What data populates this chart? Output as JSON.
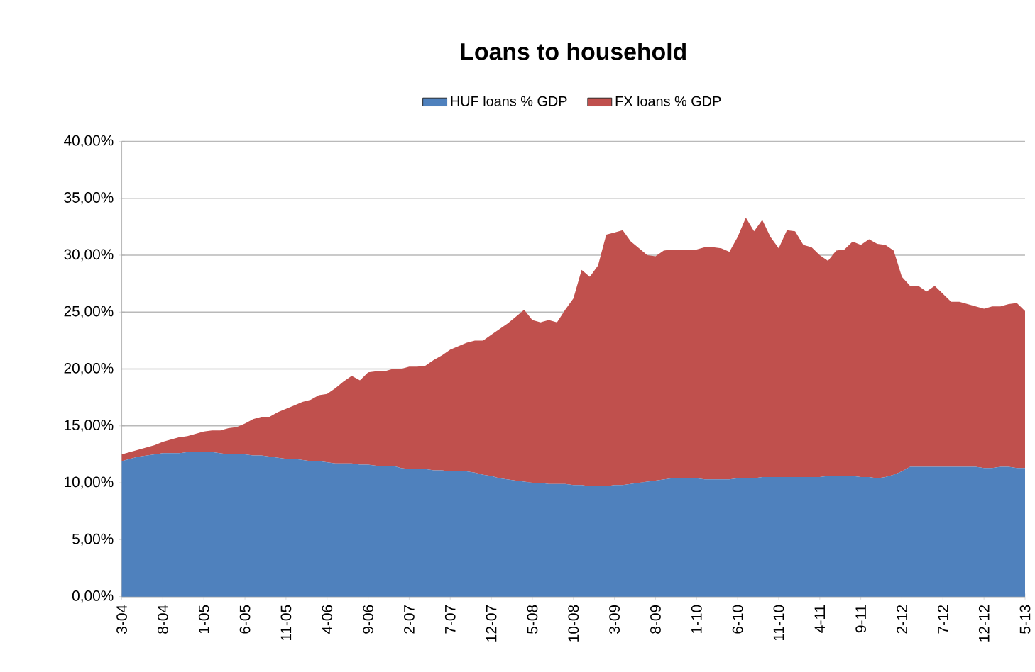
{
  "chart_data": {
    "type": "area",
    "title": "Loans to household",
    "stacked": true,
    "legend": "top",
    "grid": "y",
    "categories": [
      "3-04",
      null,
      null,
      null,
      null,
      "8-04",
      null,
      null,
      null,
      null,
      "1-05",
      null,
      null,
      null,
      null,
      "6-05",
      null,
      null,
      null,
      null,
      "11-05",
      null,
      null,
      null,
      null,
      "4-06",
      null,
      null,
      null,
      null,
      "9-06",
      null,
      null,
      null,
      null,
      "2-07",
      null,
      null,
      null,
      null,
      "7-07",
      null,
      null,
      null,
      null,
      "12-07",
      null,
      null,
      null,
      null,
      "5-08",
      null,
      null,
      null,
      null,
      "10-08",
      null,
      null,
      null,
      null,
      "3-09",
      null,
      null,
      null,
      null,
      "8-09",
      null,
      null,
      null,
      null,
      "1-10",
      null,
      null,
      null,
      null,
      "6-10",
      null,
      null,
      null,
      null,
      "11-10",
      null,
      null,
      null,
      null,
      "4-11",
      null,
      null,
      null,
      null,
      "9-11",
      null,
      null,
      null,
      null,
      "2-12",
      null,
      null,
      null,
      null,
      "7-12",
      null,
      null,
      null,
      null,
      "12-12",
      null,
      null,
      null,
      null,
      "5-13"
    ],
    "ylim": [
      0,
      40
    ],
    "yticks": [
      {
        "value": 0,
        "label": "0,00%"
      },
      {
        "value": 5,
        "label": "5,00%"
      },
      {
        "value": 10,
        "label": "10,00%"
      },
      {
        "value": 15,
        "label": "15,00%"
      },
      {
        "value": 20,
        "label": "20,00%"
      },
      {
        "value": 25,
        "label": "25,00%"
      },
      {
        "value": 30,
        "label": "30,00%"
      },
      {
        "value": 35,
        "label": "35,00%"
      },
      {
        "value": 40,
        "label": "40,00%"
      }
    ],
    "series": [
      {
        "name": "HUF loans % GDP",
        "color": "#4f81bd",
        "values": [
          11.9,
          12.1,
          12.3,
          12.4,
          12.5,
          12.6,
          12.6,
          12.6,
          12.7,
          12.7,
          12.7,
          12.7,
          12.6,
          12.5,
          12.5,
          12.5,
          12.4,
          12.4,
          12.3,
          12.2,
          12.1,
          12.1,
          12.0,
          11.9,
          11.9,
          11.8,
          11.7,
          11.7,
          11.7,
          11.6,
          11.6,
          11.5,
          11.5,
          11.5,
          11.3,
          11.2,
          11.2,
          11.2,
          11.1,
          11.1,
          11.0,
          11.0,
          11.0,
          10.9,
          10.7,
          10.6,
          10.4,
          10.3,
          10.2,
          10.1,
          10.0,
          10.0,
          9.9,
          9.9,
          9.9,
          9.8,
          9.8,
          9.7,
          9.7,
          9.7,
          9.8,
          9.8,
          9.9,
          10.0,
          10.1,
          10.2,
          10.3,
          10.4,
          10.4,
          10.4,
          10.4,
          10.3,
          10.3,
          10.3,
          10.3,
          10.4,
          10.4,
          10.4,
          10.5,
          10.5,
          10.5,
          10.5,
          10.5,
          10.5,
          10.5,
          10.5,
          10.6,
          10.6,
          10.6,
          10.6,
          10.5,
          10.5,
          10.4,
          10.5,
          10.7,
          11.0,
          11.4,
          11.4,
          11.4,
          11.4,
          11.4,
          11.4,
          11.4,
          11.4,
          11.4,
          11.3,
          11.3,
          11.4,
          11.4,
          11.3,
          11.3
        ]
      },
      {
        "name": "FX loans % GDP",
        "color": "#c0504d",
        "values": [
          0.6,
          0.6,
          0.6,
          0.7,
          0.8,
          1.0,
          1.2,
          1.4,
          1.4,
          1.6,
          1.8,
          1.9,
          2.0,
          2.3,
          2.4,
          2.7,
          3.2,
          3.4,
          3.5,
          4.0,
          4.4,
          4.7,
          5.1,
          5.4,
          5.8,
          6.0,
          6.6,
          7.2,
          7.7,
          7.4,
          8.1,
          8.3,
          8.3,
          8.5,
          8.7,
          9.0,
          9.0,
          9.1,
          9.7,
          10.1,
          10.7,
          11.0,
          11.3,
          11.6,
          11.8,
          12.4,
          13.1,
          13.7,
          14.4,
          15.1,
          14.3,
          14.1,
          14.4,
          14.2,
          15.3,
          16.4,
          18.9,
          18.4,
          19.4,
          22.1,
          22.2,
          22.4,
          21.3,
          20.6,
          19.9,
          19.7,
          20.1,
          20.1,
          20.1,
          20.1,
          20.1,
          20.4,
          20.4,
          20.3,
          20.0,
          21.2,
          22.9,
          21.7,
          22.6,
          21.1,
          20.1,
          21.7,
          21.6,
          20.4,
          20.2,
          19.5,
          18.9,
          19.8,
          19.9,
          20.6,
          20.4,
          20.9,
          20.6,
          20.4,
          19.7,
          17.1,
          15.9,
          15.9,
          15.4,
          15.9,
          15.2,
          14.5,
          14.5,
          14.3,
          14.1,
          14.0,
          14.2,
          14.1,
          14.3,
          14.5,
          13.8
        ]
      }
    ]
  }
}
